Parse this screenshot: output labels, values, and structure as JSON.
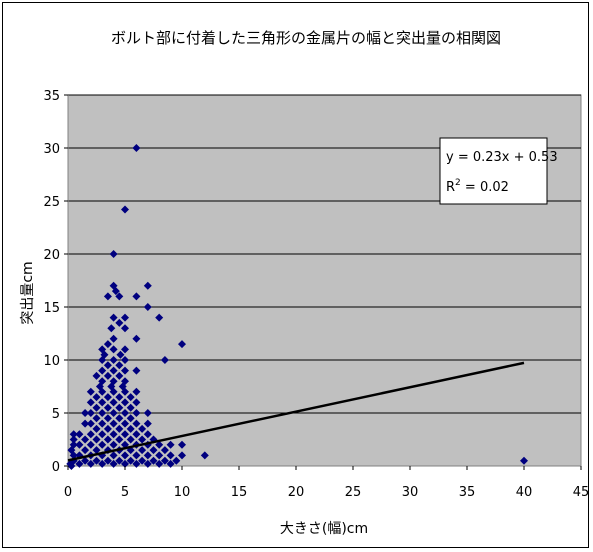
{
  "chart_data": {
    "type": "scatter",
    "title": "ボルト部に付着した三角形の金属片の幅と突出量の相関図",
    "xlabel": "大きさ(幅)cm",
    "ylabel": "突出量cm",
    "xlim": [
      0,
      45
    ],
    "ylim": [
      0,
      35
    ],
    "x_ticks": [
      0,
      5,
      10,
      15,
      20,
      25,
      30,
      35,
      40,
      45
    ],
    "y_ticks": [
      0,
      5,
      10,
      15,
      20,
      25,
      30,
      35
    ],
    "grid": "horizontal",
    "plot_background": "#c0c0c0",
    "marker_color": "#00007f",
    "marker": "diamond",
    "trendline": {
      "slope": 0.23,
      "intercept": 0.53,
      "x_range": [
        0,
        40
      ],
      "color": "#000000"
    },
    "equation": "y = 0.23x + 0.53",
    "r_squared_prefix": "R",
    "r_squared_sup": "2",
    "r_squared_suffix": " = 0.02",
    "points": [
      [
        6,
        30
      ],
      [
        5,
        24.2
      ],
      [
        4,
        20
      ],
      [
        7,
        17
      ],
      [
        4,
        17
      ],
      [
        4.2,
        16.5
      ],
      [
        4.5,
        16
      ],
      [
        6,
        16
      ],
      [
        3.5,
        16
      ],
      [
        7,
        15
      ],
      [
        8,
        14
      ],
      [
        4,
        14
      ],
      [
        5,
        14
      ],
      [
        4.5,
        13.5
      ],
      [
        3.8,
        13
      ],
      [
        5,
        13
      ],
      [
        6,
        12
      ],
      [
        4,
        12
      ],
      [
        3.5,
        11.5
      ],
      [
        10,
        11.5
      ],
      [
        3,
        11
      ],
      [
        4,
        11
      ],
      [
        5,
        11
      ],
      [
        3.2,
        10.5
      ],
      [
        4.6,
        10.5
      ],
      [
        8.5,
        10
      ],
      [
        3,
        10
      ],
      [
        4,
        10
      ],
      [
        5,
        10
      ],
      [
        3.5,
        9.5
      ],
      [
        4.5,
        9.5
      ],
      [
        3,
        9
      ],
      [
        4,
        9
      ],
      [
        5,
        9
      ],
      [
        6,
        9
      ],
      [
        2.5,
        8.5
      ],
      [
        3.5,
        8.5
      ],
      [
        4.5,
        8.5
      ],
      [
        3,
        8
      ],
      [
        4,
        8
      ],
      [
        5,
        8
      ],
      [
        2.8,
        7.5
      ],
      [
        3.8,
        7.5
      ],
      [
        4.8,
        7.5
      ],
      [
        2,
        7
      ],
      [
        3,
        7
      ],
      [
        4,
        7
      ],
      [
        5,
        7
      ],
      [
        6,
        7
      ],
      [
        2.5,
        6.5
      ],
      [
        3.5,
        6.5
      ],
      [
        4.5,
        6.5
      ],
      [
        5.5,
        6.5
      ],
      [
        2,
        6
      ],
      [
        3,
        6
      ],
      [
        4,
        6
      ],
      [
        5,
        6
      ],
      [
        6,
        6
      ],
      [
        2.5,
        5.5
      ],
      [
        3.5,
        5.5
      ],
      [
        4.5,
        5.5
      ],
      [
        5.5,
        5.5
      ],
      [
        1.5,
        5
      ],
      [
        2,
        5
      ],
      [
        3,
        5
      ],
      [
        4,
        5
      ],
      [
        5,
        5
      ],
      [
        6,
        5
      ],
      [
        7,
        5
      ],
      [
        2.5,
        4.5
      ],
      [
        3.5,
        4.5
      ],
      [
        4.5,
        4.5
      ],
      [
        5.5,
        4.5
      ],
      [
        1.5,
        4
      ],
      [
        2,
        4
      ],
      [
        3,
        4
      ],
      [
        4,
        4
      ],
      [
        5,
        4
      ],
      [
        6,
        4
      ],
      [
        7,
        4
      ],
      [
        2.5,
        3.5
      ],
      [
        3.5,
        3.5
      ],
      [
        4.5,
        3.5
      ],
      [
        5.5,
        3.5
      ],
      [
        6.5,
        3.5
      ],
      [
        1,
        3
      ],
      [
        2,
        3
      ],
      [
        3,
        3
      ],
      [
        4,
        3
      ],
      [
        5,
        3
      ],
      [
        6,
        3
      ],
      [
        7,
        3
      ],
      [
        0.5,
        3
      ],
      [
        1.5,
        2.5
      ],
      [
        2.5,
        2.5
      ],
      [
        3.5,
        2.5
      ],
      [
        4.5,
        2.5
      ],
      [
        5.5,
        2.5
      ],
      [
        6.5,
        2.5
      ],
      [
        7.5,
        2.5
      ],
      [
        0.5,
        2.5
      ],
      [
        1,
        2
      ],
      [
        2,
        2
      ],
      [
        3,
        2
      ],
      [
        4,
        2
      ],
      [
        5,
        2
      ],
      [
        6,
        2
      ],
      [
        7,
        2
      ],
      [
        8,
        2
      ],
      [
        9,
        2
      ],
      [
        10,
        2
      ],
      [
        0.5,
        2
      ],
      [
        1.5,
        1.5
      ],
      [
        2.5,
        1.5
      ],
      [
        3.5,
        1.5
      ],
      [
        4.5,
        1.5
      ],
      [
        5.5,
        1.5
      ],
      [
        6.5,
        1.5
      ],
      [
        7.5,
        1.5
      ],
      [
        8.5,
        1.5
      ],
      [
        0.3,
        1.5
      ],
      [
        1,
        1
      ],
      [
        2,
        1
      ],
      [
        3,
        1
      ],
      [
        4,
        1
      ],
      [
        5,
        1
      ],
      [
        6,
        1
      ],
      [
        7,
        1
      ],
      [
        8,
        1
      ],
      [
        9,
        1
      ],
      [
        10,
        1
      ],
      [
        12,
        1
      ],
      [
        0.5,
        1
      ],
      [
        0.5,
        0.5
      ],
      [
        1.5,
        0.5
      ],
      [
        2.5,
        0.5
      ],
      [
        3.5,
        0.5
      ],
      [
        4.5,
        0.5
      ],
      [
        5.5,
        0.5
      ],
      [
        6.5,
        0.5
      ],
      [
        7.5,
        0.5
      ],
      [
        8.5,
        0.5
      ],
      [
        9.5,
        0.5
      ],
      [
        40,
        0.5
      ],
      [
        0.2,
        0.2
      ],
      [
        1,
        0.2
      ],
      [
        2,
        0.2
      ],
      [
        3,
        0.2
      ],
      [
        4,
        0.2
      ],
      [
        5,
        0.2
      ],
      [
        6,
        0.2
      ],
      [
        7,
        0.2
      ],
      [
        8,
        0.2
      ],
      [
        9,
        0.2
      ],
      [
        0.3,
        0
      ]
    ]
  }
}
